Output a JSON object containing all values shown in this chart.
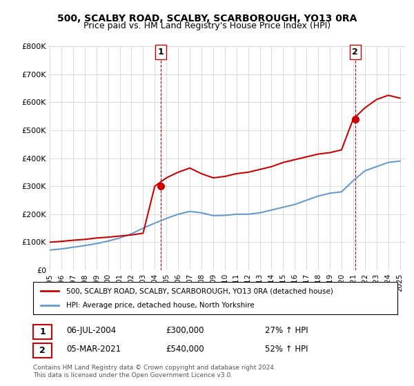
{
  "title_line1": "500, SCALBY ROAD, SCALBY, SCARBOROUGH, YO13 0RA",
  "title_line2": "Price paid vs. HM Land Registry's House Price Index (HPI)",
  "xlabel": "",
  "ylabel": "",
  "ylim": [
    0,
    800000
  ],
  "xlim_start": 1995.0,
  "xlim_end": 2025.5,
  "yticks": [
    0,
    100000,
    200000,
    300000,
    400000,
    500000,
    600000,
    700000,
    800000
  ],
  "ytick_labels": [
    "£0",
    "£100K",
    "£200K",
    "£300K",
    "£400K",
    "£500K",
    "£600K",
    "£700K",
    "£800K"
  ],
  "xticks": [
    1995,
    1996,
    1997,
    1998,
    1999,
    2000,
    2001,
    2002,
    2003,
    2004,
    2005,
    2006,
    2007,
    2008,
    2009,
    2010,
    2011,
    2012,
    2013,
    2014,
    2015,
    2016,
    2017,
    2018,
    2019,
    2020,
    2021,
    2022,
    2023,
    2024,
    2025
  ],
  "red_line_color": "#cc0000",
  "blue_line_color": "#6699cc",
  "marker_color": "#cc0000",
  "vline_color": "#cc0000",
  "point1_x": 2004.5,
  "point1_y": 300000,
  "point2_x": 2021.17,
  "point2_y": 540000,
  "legend_entry1": "500, SCALBY ROAD, SCALBY, SCARBOROUGH, YO13 0RA (detached house)",
  "legend_entry2": "HPI: Average price, detached house, North Yorkshire",
  "table_row1_num": "1",
  "table_row1_date": "06-JUL-2004",
  "table_row1_price": "£300,000",
  "table_row1_hpi": "27% ↑ HPI",
  "table_row2_num": "2",
  "table_row2_date": "05-MAR-2021",
  "table_row2_price": "£540,000",
  "table_row2_hpi": "52% ↑ HPI",
  "footer": "Contains HM Land Registry data © Crown copyright and database right 2024.\nThis data is licensed under the Open Government Licence v3.0.",
  "bg_color": "#ffffff",
  "grid_color": "#cccccc",
  "red_years": [
    1995,
    1996,
    1997,
    1998,
    1999,
    2000,
    2001,
    2002,
    2003,
    2004,
    2005,
    2006,
    2007,
    2008,
    2009,
    2010,
    2011,
    2012,
    2013,
    2014,
    2015,
    2016,
    2017,
    2018,
    2019,
    2020,
    2021,
    2022,
    2023,
    2024,
    2025
  ],
  "red_values": [
    100000,
    103000,
    107000,
    110000,
    115000,
    118000,
    122000,
    126000,
    132000,
    300000,
    330000,
    350000,
    365000,
    345000,
    330000,
    335000,
    345000,
    350000,
    360000,
    370000,
    385000,
    395000,
    405000,
    415000,
    420000,
    430000,
    540000,
    580000,
    610000,
    625000,
    615000
  ],
  "blue_years": [
    1995,
    1996,
    1997,
    1998,
    1999,
    2000,
    2001,
    2002,
    2003,
    2004,
    2005,
    2006,
    2007,
    2008,
    2009,
    2010,
    2011,
    2012,
    2013,
    2014,
    2015,
    2016,
    2017,
    2018,
    2019,
    2020,
    2021,
    2022,
    2023,
    2024,
    2025
  ],
  "blue_values": [
    72000,
    76000,
    82000,
    88000,
    95000,
    104000,
    115000,
    130000,
    150000,
    168000,
    185000,
    200000,
    210000,
    205000,
    195000,
    196000,
    200000,
    200000,
    205000,
    215000,
    225000,
    235000,
    250000,
    265000,
    275000,
    280000,
    320000,
    355000,
    370000,
    385000,
    390000
  ]
}
